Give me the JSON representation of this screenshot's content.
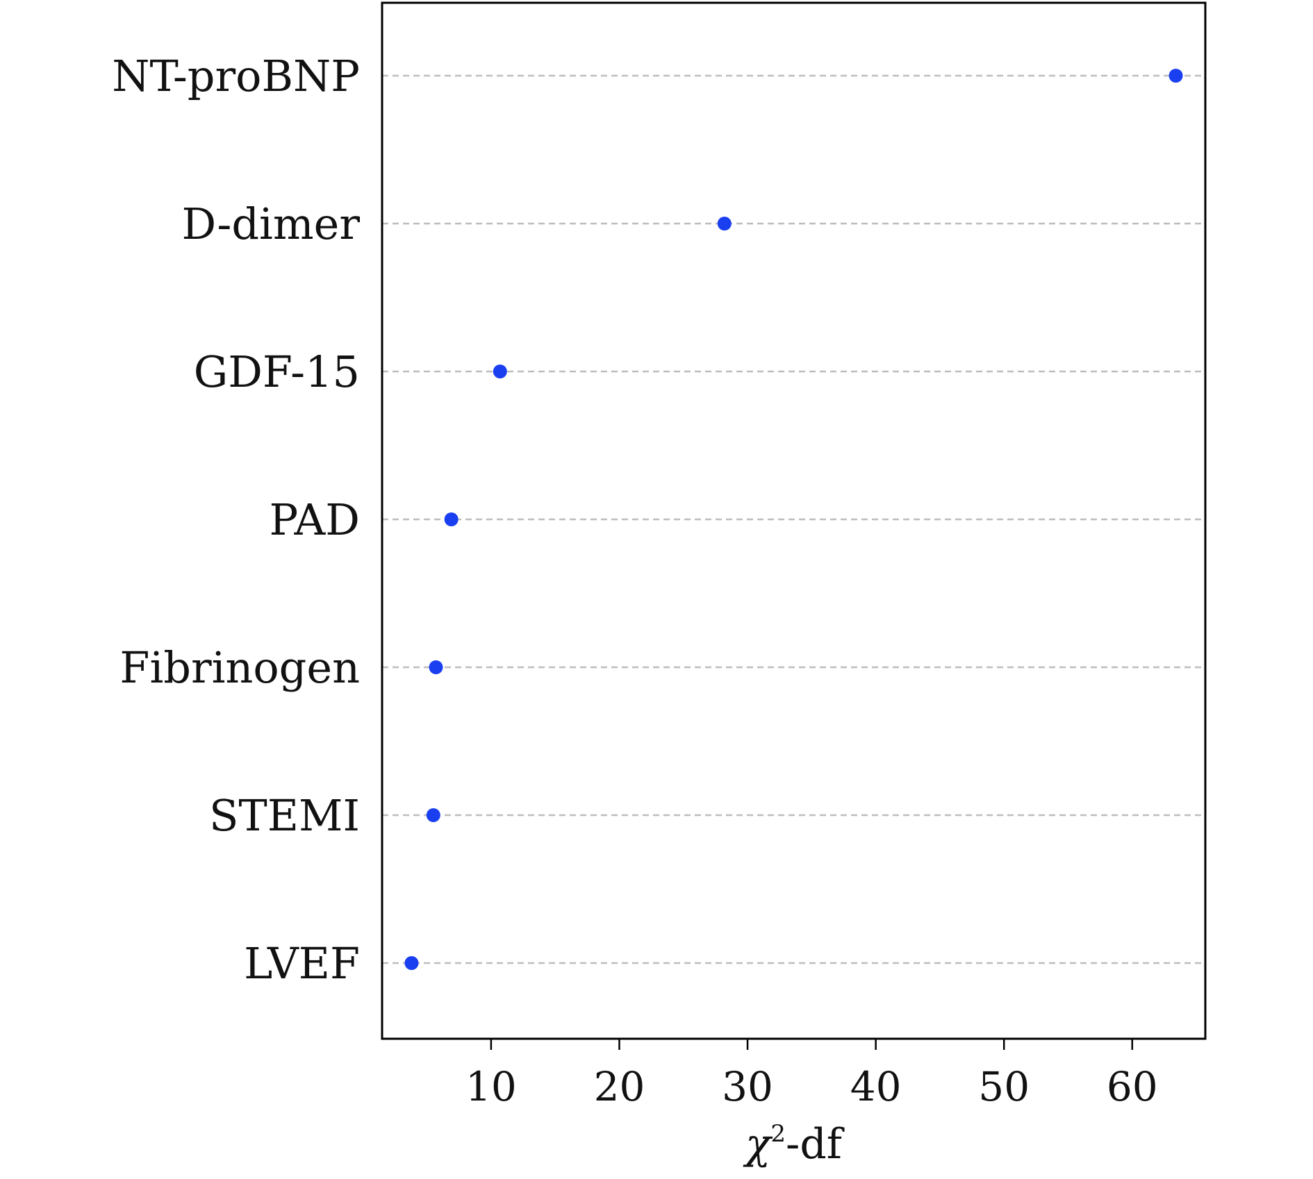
{
  "chart_data": {
    "type": "scatter",
    "categories": [
      "NT-proBNP",
      "D-dimer",
      "GDF-15",
      "PAD",
      "Fibrinogen",
      "STEMI",
      "LVEF"
    ],
    "values": [
      63.4,
      28.2,
      10.7,
      6.9,
      5.7,
      5.5,
      3.8
    ],
    "xlabel": {
      "main": "χ",
      "superscript": "2",
      "suffix": "-df"
    },
    "xticks": [
      10,
      20,
      30,
      40,
      50,
      60
    ],
    "xlim": [
      1.5,
      65.7
    ],
    "grid": "horizontal dashed reference lines",
    "colors": {
      "point": "#1a3ff0",
      "gridline": "#bdbdbd",
      "frame": "#000000"
    }
  }
}
